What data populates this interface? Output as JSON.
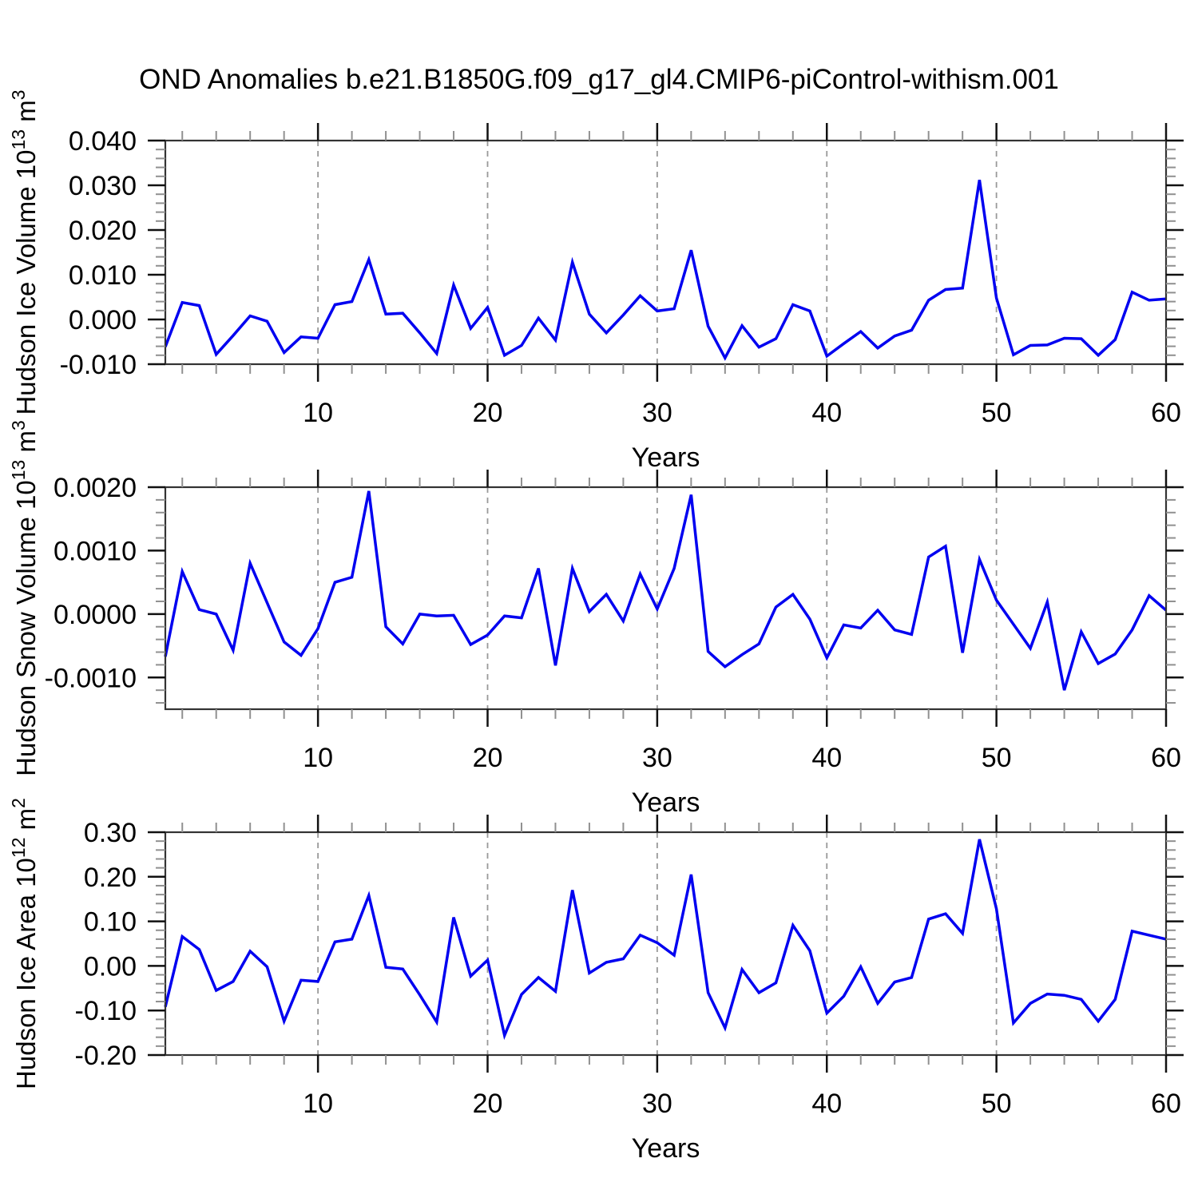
{
  "title": "OND Anomalies b.e21.B1850G.f09_g17_gl4.CMIP6-piControl-withism.001",
  "colors": {
    "line": "#0000f0",
    "grid": "#999999",
    "axis": "#333333",
    "major_tick": "#111111",
    "minor_tick": "#909090",
    "text": "#000000",
    "background": "#ffffff"
  },
  "x_axis": {
    "label": "Years",
    "min": 1,
    "max": 60,
    "major_ticks": [
      10,
      20,
      30,
      40,
      50,
      60
    ],
    "major_labels": [
      "10",
      "20",
      "30",
      "40",
      "50",
      "60"
    ],
    "minor_step": 2,
    "grid_years": [
      10,
      20,
      30,
      40,
      50
    ],
    "grid_style": "dashed"
  },
  "chart_data": [
    {
      "type": "line",
      "ylabel": "Hudson Ice Volume 10^13 m^3",
      "ylabel_parts": [
        {
          "t": "Hudson Ice Volume 10"
        },
        {
          "t": "13",
          "sup": true
        },
        {
          "t": " m"
        },
        {
          "t": "3",
          "sup": true
        }
      ],
      "xlabel": "Years",
      "ylim": [
        -0.01,
        0.04
      ],
      "yticks": {
        "values": [
          0.04,
          0.03,
          0.02,
          0.01,
          0.0,
          -0.01
        ],
        "labels": [
          "0.040",
          "0.030",
          "0.020",
          "0.010",
          "0.000",
          "-0.010"
        ],
        "minor_step": 0.002
      },
      "x_start": 1,
      "x_step": 1,
      "values": [
        -0.0061,
        0.0038,
        0.0031,
        -0.0078,
        -0.0036,
        0.0008,
        -0.0004,
        -0.0074,
        -0.0039,
        -0.0042,
        0.0033,
        0.004,
        0.0134,
        0.0012,
        0.0014,
        -0.003,
        -0.0076,
        0.0077,
        -0.002,
        0.0027,
        -0.008,
        -0.0058,
        0.0003,
        -0.0046,
        0.0128,
        0.0012,
        -0.003,
        0.001,
        0.0053,
        0.0019,
        0.0024,
        0.0155,
        -0.0015,
        -0.0086,
        -0.0014,
        -0.0062,
        -0.0043,
        0.0033,
        0.0019,
        -0.0082,
        -0.0054,
        -0.0027,
        -0.0064,
        -0.0037,
        -0.0024,
        0.0043,
        0.0067,
        0.007,
        0.0312,
        0.0048,
        -0.0079,
        -0.0058,
        -0.0057,
        -0.0042,
        -0.0043,
        -0.008,
        -0.0045,
        0.0061,
        0.0043,
        0.0046
      ]
    },
    {
      "type": "line",
      "ylabel": "Hudson Snow Volume 10^13 m^3",
      "ylabel_parts": [
        {
          "t": "Hudson Snow Volume 10"
        },
        {
          "t": "13",
          "sup": true
        },
        {
          "t": " m"
        },
        {
          "t": "3",
          "sup": true
        }
      ],
      "xlabel": "Years",
      "ylim": [
        -0.0015,
        0.002
      ],
      "yticks": {
        "values": [
          0.002,
          0.001,
          0.0,
          -0.001
        ],
        "labels": [
          "0.0020",
          "0.0010",
          "0.0000",
          "-0.0010"
        ],
        "minor_step": 0.0002
      },
      "x_start": 1,
      "x_step": 1,
      "values": [
        -0.00067,
        0.00067,
        7e-05,
        0.0,
        -0.00057,
        0.0008,
        0.00018,
        -0.00044,
        -0.00065,
        -0.00023,
        0.0005,
        0.00058,
        0.00194,
        -0.0002,
        -0.00047,
        0.0,
        -3e-05,
        -2e-05,
        -0.00048,
        -0.00033,
        -3e-05,
        -6e-05,
        0.00072,
        -0.00081,
        0.00072,
        4e-05,
        0.00031,
        -0.00011,
        0.00063,
        8e-05,
        0.00072,
        0.00188,
        -0.00059,
        -0.00083,
        -0.00064,
        -0.00047,
        0.00011,
        0.00031,
        -8e-05,
        -0.00069,
        -0.00017,
        -0.00022,
        6e-05,
        -0.00025,
        -0.00032,
        0.0009,
        0.00107,
        -0.00061,
        0.00086,
        0.00022,
        -0.00016,
        -0.00054,
        0.00019,
        -0.0012,
        -0.00028,
        -0.00078,
        -0.00063,
        -0.00025,
        0.00029,
        6e-05
      ]
    },
    {
      "type": "line",
      "ylabel": "Hudson Ice Area 10^12 m^2",
      "ylabel_parts": [
        {
          "t": "Hudson Ice Area 10"
        },
        {
          "t": "12",
          "sup": true
        },
        {
          "t": " m"
        },
        {
          "t": "2",
          "sup": true
        }
      ],
      "xlabel": "Years",
      "ylim": [
        -0.2,
        0.3
      ],
      "yticks": {
        "values": [
          0.3,
          0.2,
          0.1,
          0.0,
          -0.1,
          -0.2
        ],
        "labels": [
          "0.30",
          "0.20",
          "0.10",
          "0.00",
          "-0.10",
          "-0.20"
        ],
        "minor_step": 0.02
      },
      "x_start": 1,
      "x_step": 1,
      "values": [
        -0.092,
        0.066,
        0.037,
        -0.055,
        -0.035,
        0.033,
        -0.002,
        -0.124,
        -0.032,
        -0.035,
        0.054,
        0.06,
        0.158,
        -0.003,
        -0.007,
        -0.065,
        -0.126,
        0.109,
        -0.023,
        0.013,
        -0.156,
        -0.064,
        -0.026,
        -0.057,
        0.17,
        -0.016,
        0.008,
        0.016,
        0.069,
        0.052,
        0.024,
        0.205,
        -0.06,
        -0.139,
        -0.008,
        -0.06,
        -0.038,
        0.091,
        0.034,
        -0.106,
        -0.068,
        -0.002,
        -0.084,
        -0.036,
        -0.026,
        0.105,
        0.117,
        0.073,
        0.284,
        0.128,
        -0.128,
        -0.084,
        -0.063,
        -0.066,
        -0.075,
        -0.124,
        -0.075,
        0.078,
        0.069,
        0.06
      ]
    }
  ]
}
